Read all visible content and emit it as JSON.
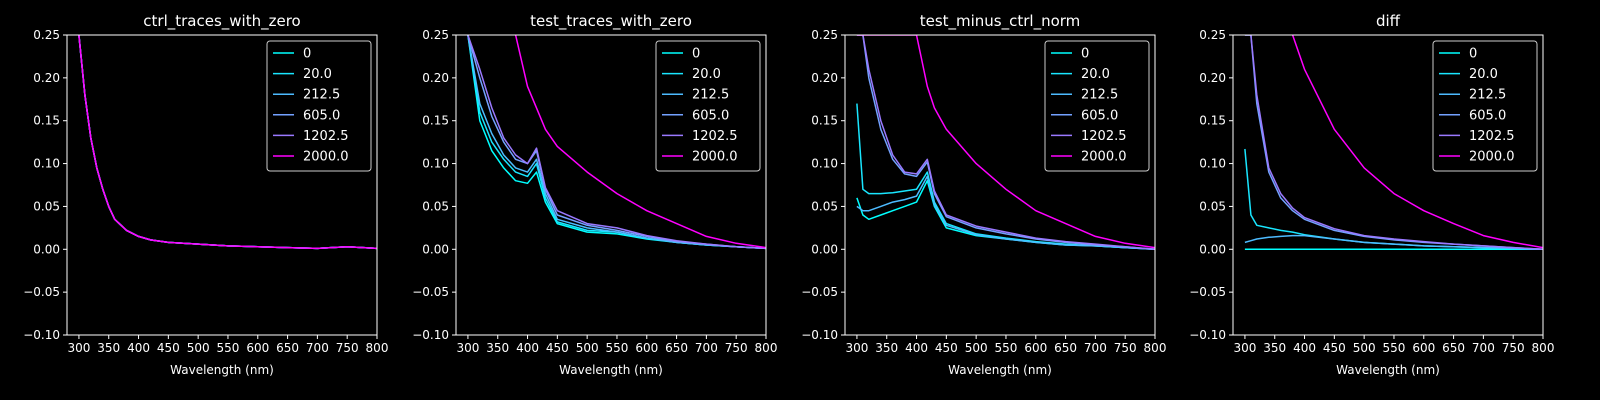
{
  "figure": {
    "background": "#000000",
    "foreground": "#ffffff"
  },
  "legend": {
    "labels": [
      "0",
      "20.0",
      "212.5",
      "605.0",
      "1202.5",
      "2000.0"
    ],
    "colors": [
      "#00ffff",
      "#19e6ff",
      "#4dbbff",
      "#73a1ff",
      "#9a79ff",
      "#ff00ff"
    ],
    "placement": "upper right"
  },
  "chart_data": [
    {
      "type": "line",
      "title": "ctrl_traces_with_zero",
      "xlabel": "Wavelength (nm)",
      "ylabel": "",
      "xlim": [
        280,
        800
      ],
      "ylim": [
        -0.1,
        0.25
      ],
      "xticks": [
        "300",
        "350",
        "400",
        "450",
        "500",
        "550",
        "600",
        "650",
        "700",
        "750",
        "800"
      ],
      "yticks": [
        "−0.10",
        "−0.05",
        "0.00",
        "0.05",
        "0.10",
        "0.15",
        "0.20",
        "0.25"
      ],
      "grid": false,
      "legend": "upper right",
      "x": [
        300,
        310,
        320,
        330,
        340,
        350,
        360,
        380,
        400,
        420,
        450,
        500,
        550,
        600,
        650,
        700,
        750,
        800
      ],
      "series": [
        {
          "name": "0",
          "values": [
            0.25,
            0.18,
            0.13,
            0.095,
            0.07,
            0.05,
            0.035,
            0.022,
            0.015,
            0.011,
            0.008,
            0.006,
            0.004,
            0.003,
            0.002,
            0.001,
            0.003,
            0.001
          ]
        },
        {
          "name": "20.0",
          "values": [
            0.25,
            0.18,
            0.13,
            0.095,
            0.07,
            0.05,
            0.035,
            0.022,
            0.015,
            0.011,
            0.008,
            0.006,
            0.004,
            0.003,
            0.002,
            0.001,
            0.003,
            0.001
          ]
        },
        {
          "name": "212.5",
          "values": [
            0.25,
            0.18,
            0.13,
            0.095,
            0.07,
            0.05,
            0.035,
            0.022,
            0.015,
            0.011,
            0.008,
            0.006,
            0.004,
            0.003,
            0.002,
            0.001,
            0.003,
            0.001
          ]
        },
        {
          "name": "605.0",
          "values": [
            0.25,
            0.18,
            0.13,
            0.095,
            0.07,
            0.05,
            0.035,
            0.022,
            0.015,
            0.011,
            0.008,
            0.006,
            0.004,
            0.003,
            0.002,
            0.001,
            0.003,
            0.001
          ]
        },
        {
          "name": "1202.5",
          "values": [
            0.25,
            0.18,
            0.13,
            0.095,
            0.07,
            0.05,
            0.035,
            0.022,
            0.015,
            0.011,
            0.008,
            0.006,
            0.004,
            0.003,
            0.002,
            0.001,
            0.003,
            0.001
          ]
        },
        {
          "name": "2000.0",
          "values": [
            0.25,
            0.18,
            0.13,
            0.095,
            0.07,
            0.05,
            0.035,
            0.022,
            0.015,
            0.011,
            0.008,
            0.006,
            0.004,
            0.003,
            0.002,
            0.001,
            0.003,
            0.001
          ]
        }
      ]
    },
    {
      "type": "line",
      "title": "test_traces_with_zero",
      "xlabel": "Wavelength (nm)",
      "ylabel": "",
      "xlim": [
        280,
        800
      ],
      "ylim": [
        -0.1,
        0.25
      ],
      "xticks": [
        "300",
        "350",
        "400",
        "450",
        "500",
        "550",
        "600",
        "650",
        "700",
        "750",
        "800"
      ],
      "yticks": [
        "−0.10",
        "−0.05",
        "0.00",
        "0.05",
        "0.10",
        "0.15",
        "0.20",
        "0.25"
      ],
      "grid": false,
      "legend": "upper right",
      "x": [
        300,
        320,
        340,
        360,
        380,
        400,
        415,
        430,
        450,
        500,
        550,
        600,
        650,
        700,
        750,
        800
      ],
      "series": [
        {
          "name": "0",
          "values": [
            0.25,
            0.15,
            0.115,
            0.095,
            0.08,
            0.077,
            0.09,
            0.055,
            0.03,
            0.02,
            0.018,
            0.012,
            0.008,
            0.005,
            0.003,
            0.001
          ]
        },
        {
          "name": "20.0",
          "values": [
            0.25,
            0.16,
            0.125,
            0.105,
            0.09,
            0.085,
            0.1,
            0.06,
            0.032,
            0.022,
            0.02,
            0.013,
            0.008,
            0.005,
            0.003,
            0.001
          ]
        },
        {
          "name": "212.5",
          "values": [
            0.25,
            0.17,
            0.135,
            0.11,
            0.095,
            0.09,
            0.105,
            0.065,
            0.035,
            0.025,
            0.02,
            0.013,
            0.008,
            0.005,
            0.003,
            0.001
          ]
        },
        {
          "name": "605.0",
          "values": [
            0.25,
            0.2,
            0.155,
            0.125,
            0.105,
            0.1,
            0.115,
            0.07,
            0.04,
            0.028,
            0.022,
            0.015,
            0.009,
            0.006,
            0.003,
            0.001
          ]
        },
        {
          "name": "1202.5",
          "values": [
            0.25,
            0.21,
            0.165,
            0.13,
            0.11,
            0.1,
            0.118,
            0.072,
            0.045,
            0.03,
            0.025,
            0.016,
            0.01,
            0.006,
            0.003,
            0.001
          ]
        },
        {
          "name": "2000.0",
          "values": [
            null,
            null,
            null,
            null,
            0.25,
            0.19,
            0.165,
            0.14,
            0.12,
            0.09,
            0.065,
            0.045,
            0.03,
            0.015,
            0.007,
            0.002
          ]
        }
      ]
    },
    {
      "type": "line",
      "title": "test_minus_ctrl_norm",
      "xlabel": "Wavelength (nm)",
      "ylabel": "",
      "xlim": [
        280,
        800
      ],
      "ylim": [
        -0.1,
        0.25
      ],
      "xticks": [
        "300",
        "350",
        "400",
        "450",
        "500",
        "550",
        "600",
        "650",
        "700",
        "750",
        "800"
      ],
      "yticks": [
        "−0.10",
        "−0.05",
        "0.00",
        "0.05",
        "0.10",
        "0.15",
        "0.20",
        "0.25"
      ],
      "grid": false,
      "legend": "upper right",
      "x": [
        300,
        310,
        320,
        340,
        360,
        380,
        400,
        418,
        430,
        450,
        500,
        550,
        600,
        650,
        700,
        750,
        800
      ],
      "series": [
        {
          "name": "0",
          "values": [
            0.06,
            0.04,
            0.035,
            0.04,
            0.045,
            0.05,
            0.055,
            0.08,
            0.05,
            0.025,
            0.016,
            0.012,
            0.008,
            0.005,
            0.004,
            0.002,
            0.0
          ]
        },
        {
          "name": "20.0",
          "values": [
            0.17,
            0.07,
            0.065,
            0.065,
            0.066,
            0.068,
            0.07,
            0.09,
            0.055,
            0.03,
            0.018,
            0.013,
            0.009,
            0.006,
            0.004,
            0.002,
            0.0
          ]
        },
        {
          "name": "212.5",
          "values": [
            0.05,
            0.045,
            0.045,
            0.05,
            0.055,
            0.058,
            0.062,
            0.085,
            0.052,
            0.028,
            0.017,
            0.012,
            0.008,
            0.005,
            0.004,
            0.002,
            0.0
          ]
        },
        {
          "name": "605.0",
          "values": [
            0.25,
            0.25,
            0.2,
            0.14,
            0.105,
            0.088,
            0.085,
            0.102,
            0.065,
            0.038,
            0.025,
            0.018,
            0.012,
            0.008,
            0.005,
            0.003,
            0.0
          ]
        },
        {
          "name": "1202.5",
          "values": [
            0.25,
            0.25,
            0.21,
            0.15,
            0.11,
            0.09,
            0.088,
            0.105,
            0.068,
            0.04,
            0.027,
            0.02,
            0.013,
            0.009,
            0.006,
            0.003,
            0.0
          ]
        },
        {
          "name": "2000.0",
          "values": [
            0.25,
            0.25,
            0.25,
            0.25,
            0.25,
            0.25,
            0.25,
            0.19,
            0.165,
            0.14,
            0.1,
            0.07,
            0.045,
            0.03,
            0.015,
            0.007,
            0.002
          ]
        }
      ]
    },
    {
      "type": "line",
      "title": "diff",
      "xlabel": "Wavelength (nm)",
      "ylabel": "",
      "xlim": [
        280,
        800
      ],
      "ylim": [
        -0.1,
        0.25
      ],
      "xticks": [
        "300",
        "350",
        "400",
        "450",
        "500",
        "550",
        "600",
        "650",
        "700",
        "750",
        "800"
      ],
      "yticks": [
        "−0.10",
        "−0.05",
        "0.00",
        "0.05",
        "0.10",
        "0.15",
        "0.20",
        "0.25"
      ],
      "grid": false,
      "legend": "upper right",
      "x": [
        300,
        310,
        320,
        340,
        360,
        380,
        400,
        450,
        500,
        550,
        600,
        650,
        700,
        750,
        800
      ],
      "series": [
        {
          "name": "0",
          "values": [
            0.0,
            0.0,
            0.0,
            0.0,
            0.0,
            0.0,
            0.0,
            0.0,
            0.0,
            0.0,
            0.0,
            0.0,
            0.0,
            0.0,
            0.0
          ]
        },
        {
          "name": "20.0",
          "values": [
            0.117,
            0.04,
            0.028,
            0.025,
            0.022,
            0.02,
            0.017,
            0.012,
            0.008,
            0.006,
            0.004,
            0.003,
            0.002,
            0.001,
            0.0
          ]
        },
        {
          "name": "212.5",
          "values": [
            0.008,
            0.01,
            0.012,
            0.014,
            0.015,
            0.016,
            0.016,
            0.012,
            0.008,
            0.006,
            0.004,
            0.003,
            0.002,
            0.001,
            0.0
          ]
        },
        {
          "name": "605.0",
          "values": [
            0.25,
            0.25,
            0.17,
            0.09,
            0.06,
            0.045,
            0.035,
            0.022,
            0.015,
            0.011,
            0.008,
            0.006,
            0.004,
            0.002,
            0.0
          ]
        },
        {
          "name": "1202.5",
          "values": [
            0.25,
            0.25,
            0.18,
            0.095,
            0.065,
            0.048,
            0.037,
            0.024,
            0.016,
            0.012,
            0.009,
            0.006,
            0.004,
            0.002,
            0.0
          ]
        },
        {
          "name": "2000.0",
          "values": [
            null,
            null,
            null,
            null,
            null,
            0.25,
            0.21,
            0.14,
            0.095,
            0.065,
            0.045,
            0.03,
            0.016,
            0.008,
            0.002
          ]
        }
      ]
    }
  ]
}
